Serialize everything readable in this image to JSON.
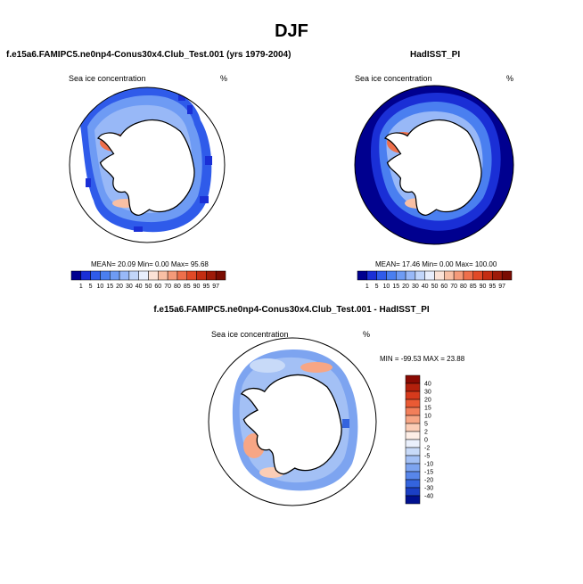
{
  "title": "DJF",
  "panels": [
    {
      "id": "model",
      "title": "f.e15a6.FAMIPC5.ne0np4-Conus30x4.Club_Test.001 (yrs 1979-2004)",
      "variable": "Sea ice concentration",
      "units": "%",
      "stats": "MEAN=  20.09  Min=   0.00  Max=  95.68"
    },
    {
      "id": "obs",
      "title": "HadISST_PI",
      "variable": "Sea ice concentration",
      "units": "%",
      "stats": "MEAN=  17.46  Min=   0.00  Max= 100.00"
    },
    {
      "id": "diff",
      "title": "f.e15a6.FAMIPC5.ne0np4-Conus30x4.Club_Test.001 - HadISST_PI",
      "variable": "Sea ice concentration",
      "units": "%",
      "stats": "MIN = -99.53 MAX =  23.88"
    }
  ],
  "chart_data": [
    {
      "type": "heatmap",
      "title": "f.e15a6.FAMIPC5.ne0np4-Conus30x4.Club_Test.001 (yrs 1979-2004)",
      "variable": "Sea ice concentration",
      "units": "%",
      "mean": 20.09,
      "min": 0.0,
      "max": 95.68,
      "colorbar_levels": [
        "1",
        "5",
        "10",
        "15",
        "20",
        "30",
        "40",
        "50",
        "60",
        "70",
        "80",
        "85",
        "90",
        "95",
        "97"
      ],
      "colorbar_colors": [
        "#00008f",
        "#1a2fd6",
        "#2f5bea",
        "#4a7ff0",
        "#6e9bf4",
        "#98b8f7",
        "#c2d6fa",
        "#e8eefc",
        "#fbe2d6",
        "#f8bfa4",
        "#f49a79",
        "#ee6f4b",
        "#e14a27",
        "#c32d12",
        "#9e1a08",
        "#7a0c02"
      ]
    },
    {
      "type": "heatmap",
      "title": "HadISST_PI",
      "variable": "Sea ice concentration",
      "units": "%",
      "mean": 17.46,
      "min": 0.0,
      "max": 100.0,
      "colorbar_levels": [
        "1",
        "5",
        "10",
        "15",
        "20",
        "30",
        "40",
        "50",
        "60",
        "70",
        "80",
        "85",
        "90",
        "95",
        "97"
      ],
      "colorbar_colors": [
        "#00008f",
        "#1a2fd6",
        "#2f5bea",
        "#4a7ff0",
        "#6e9bf4",
        "#98b8f7",
        "#c2d6fa",
        "#e8eefc",
        "#fbe2d6",
        "#f8bfa4",
        "#f49a79",
        "#ee6f4b",
        "#e14a27",
        "#c32d12",
        "#9e1a08",
        "#7a0c02"
      ]
    },
    {
      "type": "heatmap",
      "title": "f.e15a6.FAMIPC5.ne0np4-Conus30x4.Club_Test.001 - HadISST_PI",
      "variable": "Sea ice concentration",
      "units": "%",
      "min": -99.53,
      "max": 23.88,
      "colorbar_levels": [
        "40",
        "30",
        "20",
        "15",
        "10",
        "5",
        "2",
        "0",
        "-2",
        "-5",
        "-10",
        "-15",
        "-20",
        "-30",
        "-40"
      ],
      "colorbar_colors": [
        "#8a0a03",
        "#b3200c",
        "#d63a1c",
        "#ea5a34",
        "#f27f5a",
        "#f7a685",
        "#fbcdb6",
        "#fdeee6",
        "#eaf0fc",
        "#c8daf8",
        "#a3c0f5",
        "#7da4f0",
        "#5886ea",
        "#3464de",
        "#1b3fc4",
        "#00108f"
      ]
    }
  ]
}
